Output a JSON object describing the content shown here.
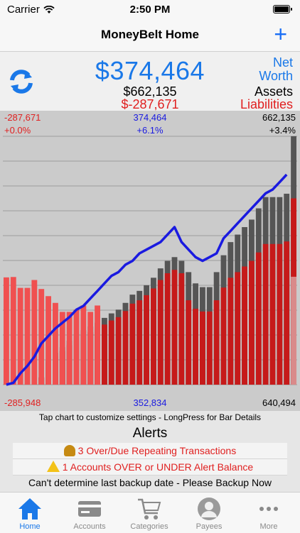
{
  "status": {
    "carrier": "Carrier",
    "time": "2:50 PM"
  },
  "nav": {
    "title": "MoneyBelt Home",
    "add_label": "+"
  },
  "summary": {
    "net_worth": "$374,464",
    "assets": "$662,135",
    "liabilities": "$-287,671",
    "net_label_1": "Net",
    "net_label_2": "Worth",
    "assets_label": "Assets",
    "liabilities_label": "Liabilities"
  },
  "chart_labels": {
    "top_left_value": "-287,671",
    "top_left_pct": "+0.0%",
    "top_mid_value": "374,464",
    "top_mid_pct": "+6.1%",
    "top_right_value": "662,135",
    "top_right_pct": "+3.4%",
    "bottom_left": "-285,948",
    "bottom_mid": "352,834",
    "bottom_right": "640,494"
  },
  "chart_data": {
    "type": "bar",
    "series": [
      {
        "name": "Liabilities",
        "color": "#e02020",
        "values": [
          285948,
          287000,
          258000,
          258000,
          279000,
          255000,
          236000,
          218000,
          194000,
          194000,
          200000,
          211000,
          194000,
          211000,
          0,
          0,
          0,
          0,
          0,
          0,
          0,
          0,
          0,
          0,
          0,
          0,
          0,
          0,
          0,
          0,
          0,
          0,
          0,
          0,
          0,
          0,
          0,
          0,
          0,
          0,
          0,
          287671
        ]
      },
      {
        "name": "Assets",
        "color": "#e02020",
        "values": [
          0,
          0,
          0,
          0,
          0,
          20000,
          65000,
          85000,
          100000,
          117000,
          135000,
          145000,
          155000,
          165000,
          178000,
          190000,
          200000,
          218000,
          240000,
          250000,
          265000,
          285000,
          310000,
          330000,
          340000,
          330000,
          300000,
          270000,
          260000,
          260000,
          300000,
          345000,
          380000,
          400000,
          420000,
          440000,
          470000,
          500000,
          500000,
          500000,
          509000,
          662135
        ]
      },
      {
        "name": "Net Worth",
        "color": "#1a1ae0",
        "values": [
          0,
          5000,
          30000,
          50000,
          75000,
          110000,
          130000,
          150000,
          165000,
          180000,
          200000,
          210000,
          230000,
          250000,
          270000,
          290000,
          300000,
          320000,
          330000,
          350000,
          360000,
          370000,
          380000,
          400000,
          420000,
          380000,
          360000,
          340000,
          330000,
          340000,
          350000,
          390000,
          410000,
          430000,
          450000,
          470000,
          490000,
          510000,
          520000,
          540000,
          560000,
          374464
        ]
      }
    ],
    "colors": {
      "liabilities_hatch": "#e02020",
      "assets_gray": "#555555",
      "net_line": "#1a1ae0"
    },
    "hint": "Tap chart to customize settings - LongPress for Bar Details"
  },
  "alerts": {
    "title": "Alerts",
    "rows": [
      {
        "icon": "bell-icon",
        "text": "3 Over/Due Repeating Transactions"
      },
      {
        "icon": "warning-icon",
        "text": "1 Accounts OVER or UNDER Alert Balance"
      }
    ],
    "backup": "Can't determine last backup date - Please Backup Now"
  },
  "tabs": [
    {
      "label": "Home",
      "icon": "home-icon",
      "active": true
    },
    {
      "label": "Accounts",
      "icon": "card-icon",
      "active": false
    },
    {
      "label": "Categories",
      "icon": "cart-icon",
      "active": false
    },
    {
      "label": "Payees",
      "icon": "person-icon",
      "active": false
    },
    {
      "label": "More",
      "icon": "more-icon",
      "active": false
    }
  ]
}
